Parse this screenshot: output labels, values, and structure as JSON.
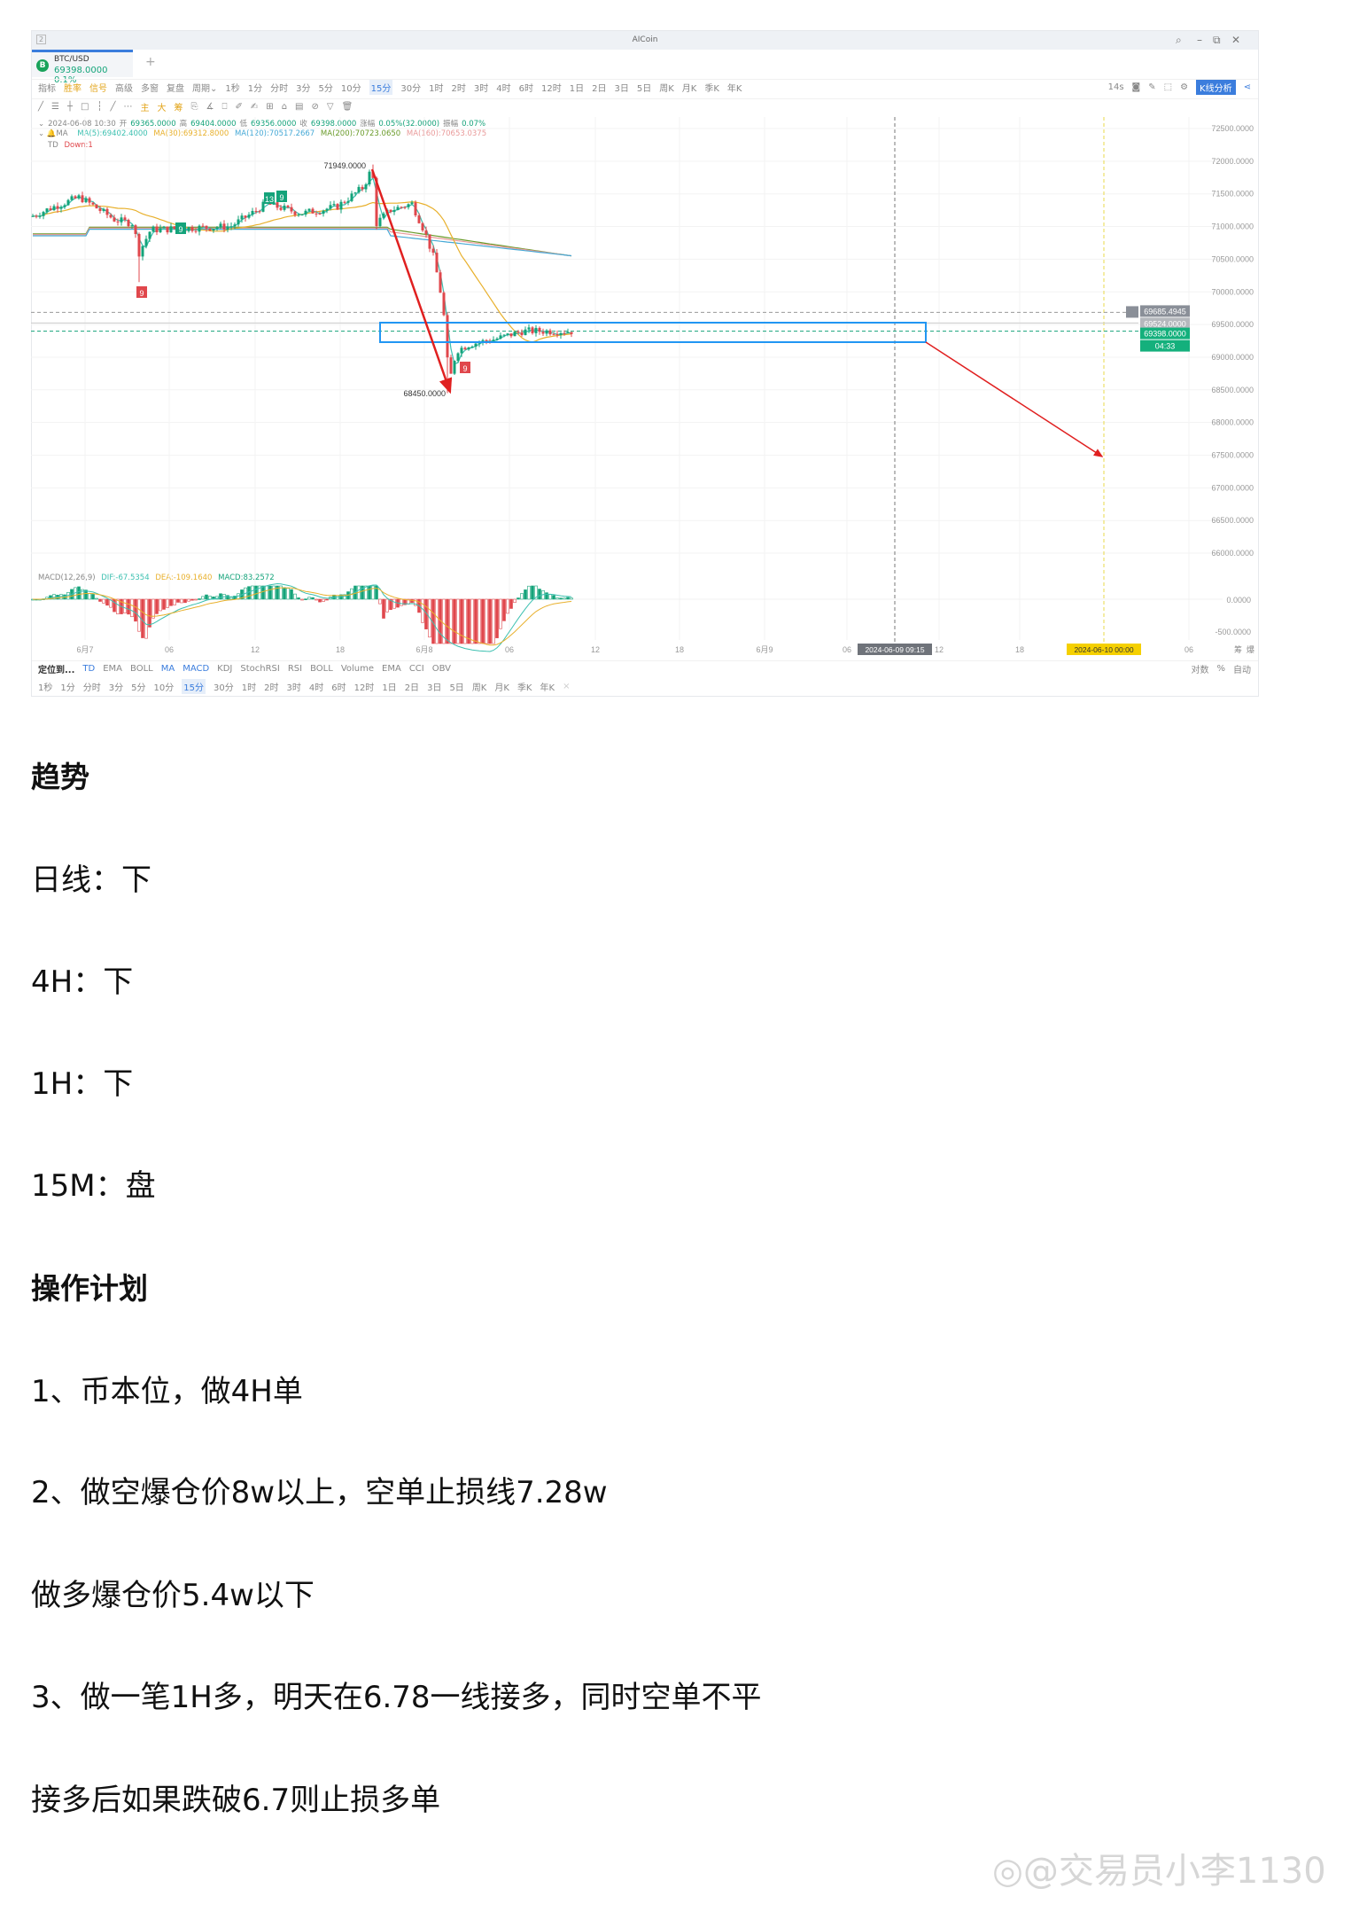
{
  "window": {
    "title": "AICoin",
    "tab_index": "2"
  },
  "tab": {
    "symbol": "BTC/USD",
    "price": "69398.0000",
    "change": "0.1%"
  },
  "toolbar1": {
    "items": [
      "指标",
      "胜率",
      "信号",
      "高级",
      "多窗",
      "复盘",
      "周期⌄"
    ],
    "periods": [
      "1秒",
      "1分",
      "分时",
      "3分",
      "5分",
      "10分",
      "15分",
      "30分",
      "1时",
      "2时",
      "3时",
      "4时",
      "6时",
      "12时",
      "1日",
      "2日",
      "3日",
      "5日",
      "周K",
      "月K",
      "季K",
      "年K"
    ],
    "selected": "15分",
    "countdown": "14s",
    "analysis": "K线分析"
  },
  "toolbar2": {
    "draw_icons": [
      "line",
      "parallel",
      "horizontal",
      "rectangle",
      "vertical",
      "ray",
      "more"
    ],
    "labels": [
      "主",
      "大",
      "筹"
    ]
  },
  "info": {
    "bar": [
      "2024-06-08 10:30",
      "开",
      "69365.0000",
      "高",
      "69404.0000",
      "低",
      "69356.0000",
      "收",
      "69398.0000",
      "涨幅",
      "0.05%(32.0000)",
      "振幅",
      "0.07%"
    ],
    "ma_label": "MA",
    "ma": [
      "MA(5):69402.4000",
      "MA(30):69312.8000",
      "MA(120):70517.2667",
      "MA(200):70723.0650",
      "MA(160):70653.0375"
    ],
    "td_label": "TD",
    "td": "Down:1"
  },
  "price_axis": [
    "72500.0000",
    "72000.0000",
    "71500.0000",
    "71000.0000",
    "70500.0000",
    "70000.0000",
    "69500.0000",
    "69000.0000",
    "68500.0000",
    "68000.0000",
    "67500.0000",
    "67000.0000",
    "66500.0000",
    "66000.0000"
  ],
  "price_tags": {
    "crosshair": "69685.4945",
    "last": "69524.0000",
    "current": "69398.0000",
    "countdown": "04:33"
  },
  "annotations": {
    "high": "71949.0000",
    "low": "68450.0000",
    "td_marks": [
      "9",
      "9",
      "13",
      "9",
      "9"
    ]
  },
  "macd": {
    "label": "MACD(12,26,9)",
    "dif": "DIF:-67.5354",
    "dea": "DEA:-109.1640",
    "macd": "MACD:83.2572",
    "axis": [
      "0.0000",
      "-500.0000"
    ]
  },
  "time_axis": [
    "6月7",
    "06",
    "12",
    "18",
    "6月8",
    "06",
    "12",
    "18",
    "6月9",
    "06",
    "12",
    "18",
    "06"
  ],
  "time_tags": {
    "cursor": "2024-06-09 09:15",
    "target": "2024-06-10 00:00"
  },
  "right_controls": [
    "筹",
    "爆"
  ],
  "indicator_bar": {
    "locate": "定位到...",
    "main": [
      "TD",
      "EMA",
      "BOLL",
      "MA"
    ],
    "sub": [
      "MACD",
      "KDJ",
      "StochRSI",
      "RSI",
      "BOLL",
      "Volume",
      "EMA",
      "CCI",
      "OBV"
    ],
    "scale": [
      "对数",
      "%",
      "自动"
    ]
  },
  "period_bar": [
    "1秒",
    "1分",
    "分时",
    "3分",
    "5分",
    "10分",
    "15分",
    "30分",
    "1时",
    "2时",
    "3时",
    "4时",
    "6时",
    "12时",
    "1日",
    "2日",
    "3日",
    "5日",
    "周K",
    "月K",
    "季K",
    "年K"
  ],
  "article": {
    "h1": "趋势",
    "trend": [
      "日线：下",
      "4H：下",
      "1H：下",
      "15M：盘"
    ],
    "h2": "操作计划",
    "plan": [
      "1、币本位，做4H单",
      "2、做空爆仓价8w以上，空单止损线7.28w",
      "做多爆仓价5.4w以下",
      "3、做一笔1H多，明天在6.78一线接多，同时空单不平",
      "接多后如果跌破6.7则止损多单"
    ]
  },
  "watermark": "@交易员小李1130",
  "colors": {
    "up": "#14a37a",
    "down": "#e0474c",
    "accent": "#3b7ddd",
    "box": "#2196f3",
    "arrow": "#e02020",
    "target": "#f5d000"
  }
}
